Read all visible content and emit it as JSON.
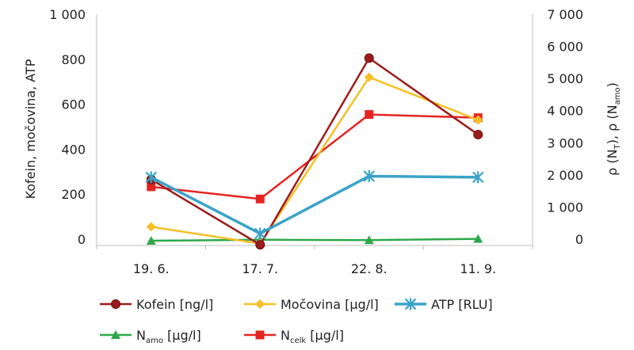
{
  "chart_data": {
    "type": "line",
    "categories": [
      "19. 6.",
      "17. 7.",
      "22. 8.",
      "11. 9."
    ],
    "ylabel_left": "Kofein, močovina, ATP",
    "ylabel_right": "ρ (N_T), ρ (N_amo)",
    "ylim_left": [
      0,
      1000
    ],
    "yticks_left": [
      "0",
      "200",
      "400",
      "600",
      "800",
      "1 000"
    ],
    "ylim_right": [
      0,
      7000
    ],
    "yticks_right": [
      "0",
      "1 000",
      "2 000",
      "3 000",
      "4 000",
      "5 000",
      "6 000",
      "7 000"
    ],
    "grid": false,
    "legend_position": "bottom",
    "series": [
      {
        "name": "Kofein [ng/l]",
        "axis": "left",
        "color": "#9b1c1c",
        "marker": "circle",
        "values": [
          265,
          -25,
          805,
          465
        ]
      },
      {
        "name": "Močovina [µg/l]",
        "axis": "left",
        "color": "#f5c026",
        "marker": "diamond",
        "values": [
          55,
          -20,
          720,
          530
        ]
      },
      {
        "name": "ATP [RLU]",
        "axis": "left",
        "color": "#3aa3c8",
        "marker": "asterisk",
        "values": [
          275,
          25,
          280,
          275
        ]
      },
      {
        "name": "N_amo [µg/l]",
        "axis": "right",
        "color": "#2ea84a",
        "marker": "triangle",
        "values": [
          -50,
          -20,
          -30,
          10
        ]
      },
      {
        "name": "N_celk [µg/l]",
        "axis": "right",
        "color": "#e52421",
        "marker": "square",
        "values": [
          1630,
          1250,
          3880,
          3780
        ]
      }
    ],
    "legend_labels": [
      {
        "main": "Kofein [ng/l]",
        "sub": ""
      },
      {
        "main": "Močovina [µg/l]",
        "sub": ""
      },
      {
        "main": "ATP [RLU]",
        "sub": ""
      },
      {
        "main": "N",
        "sub": "amo",
        "rest": " [µg/l]"
      },
      {
        "main": "N",
        "sub": "celk",
        "rest": " [µg/l]"
      }
    ]
  }
}
